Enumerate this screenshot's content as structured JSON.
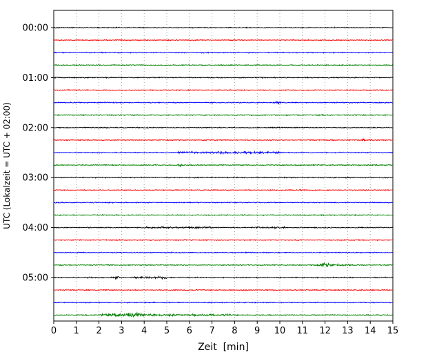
{
  "chart_data": {
    "type": "line",
    "title": "",
    "xlabel": "Zeit  [min]",
    "ylabel": "UTC (Lokalzeit = UTC + 02:00)",
    "xlim": [
      0,
      15
    ],
    "x_ticks": [
      0,
      1,
      2,
      3,
      4,
      5,
      6,
      7,
      8,
      9,
      10,
      11,
      12,
      13,
      14,
      15
    ],
    "y_tick_labels": [
      "00:00",
      "01:00",
      "02:00",
      "03:00",
      "04:00",
      "05:00"
    ],
    "grid": "vertical-dotted",
    "legend": "none",
    "trace_color_cycle": [
      "#000000",
      "#ff0000",
      "#0000ff",
      "#008000"
    ],
    "minutes_per_trace": 15,
    "traces": [
      {
        "time": "00:00",
        "color": "#000000",
        "events": []
      },
      {
        "time": "00:15",
        "color": "#ff0000",
        "events": []
      },
      {
        "time": "00:30",
        "color": "#0000ff",
        "events": []
      },
      {
        "time": "00:45",
        "color": "#008000",
        "events": []
      },
      {
        "time": "01:00",
        "color": "#000000",
        "events": []
      },
      {
        "time": "01:15",
        "color": "#ff0000",
        "events": []
      },
      {
        "time": "01:30",
        "color": "#0000ff",
        "events": [
          {
            "x": 9.9,
            "width": 0.25,
            "amp": 2.0
          }
        ]
      },
      {
        "time": "01:45",
        "color": "#008000",
        "events": [
          {
            "x": 11.8,
            "width": 0.2,
            "amp": 1.9
          }
        ]
      },
      {
        "time": "02:00",
        "color": "#000000",
        "events": []
      },
      {
        "time": "02:15",
        "color": "#ff0000",
        "events": [
          {
            "x": 13.7,
            "width": 0.15,
            "amp": 2.1
          },
          {
            "x": 14.0,
            "width": 0.15,
            "amp": 2.1
          }
        ]
      },
      {
        "time": "02:30",
        "color": "#0000ff",
        "events": [
          {
            "x": 7.75,
            "width": 4.4,
            "amp": 1.0,
            "band": true
          }
        ]
      },
      {
        "time": "02:45",
        "color": "#008000",
        "events": [
          {
            "x": 5.6,
            "width": 0.2,
            "amp": 1.7
          }
        ]
      },
      {
        "time": "03:00",
        "color": "#000000",
        "events": []
      },
      {
        "time": "03:15",
        "color": "#ff0000",
        "events": []
      },
      {
        "time": "03:30",
        "color": "#0000ff",
        "events": []
      },
      {
        "time": "03:45",
        "color": "#008000",
        "events": []
      },
      {
        "time": "04:00",
        "color": "#000000",
        "events": [
          {
            "x": 5.5,
            "width": 2.8,
            "amp": 0.6,
            "band": true
          },
          {
            "x": 9.6,
            "width": 1.2,
            "amp": 0.7,
            "band": true
          }
        ]
      },
      {
        "time": "04:15",
        "color": "#ff0000",
        "events": []
      },
      {
        "time": "04:30",
        "color": "#0000ff",
        "events": []
      },
      {
        "time": "04:45",
        "color": "#008000",
        "events": [
          {
            "x": 12.0,
            "width": 0.5,
            "amp": 3.4
          },
          {
            "x": 12.6,
            "width": 0.8,
            "amp": 0.9,
            "band": true
          }
        ]
      },
      {
        "time": "05:00",
        "color": "#000000",
        "events": [
          {
            "x": 1.6,
            "width": 0.3,
            "amp": 1.2
          },
          {
            "x": 2.8,
            "width": 0.25,
            "amp": 1.8
          },
          {
            "x": 4.3,
            "width": 1.3,
            "amp": 0.9,
            "band": true
          },
          {
            "x": 4.75,
            "width": 0.2,
            "amp": 1.7
          }
        ]
      },
      {
        "time": "05:15",
        "color": "#ff0000",
        "events": []
      },
      {
        "time": "05:30",
        "color": "#0000ff",
        "events": []
      },
      {
        "time": "05:45",
        "color": "#008000",
        "events": [
          {
            "x": 3.0,
            "width": 1.6,
            "amp": 2.2,
            "band": true
          },
          {
            "x": 5.6,
            "width": 4.4,
            "amp": 0.9,
            "band": true
          }
        ]
      }
    ]
  }
}
